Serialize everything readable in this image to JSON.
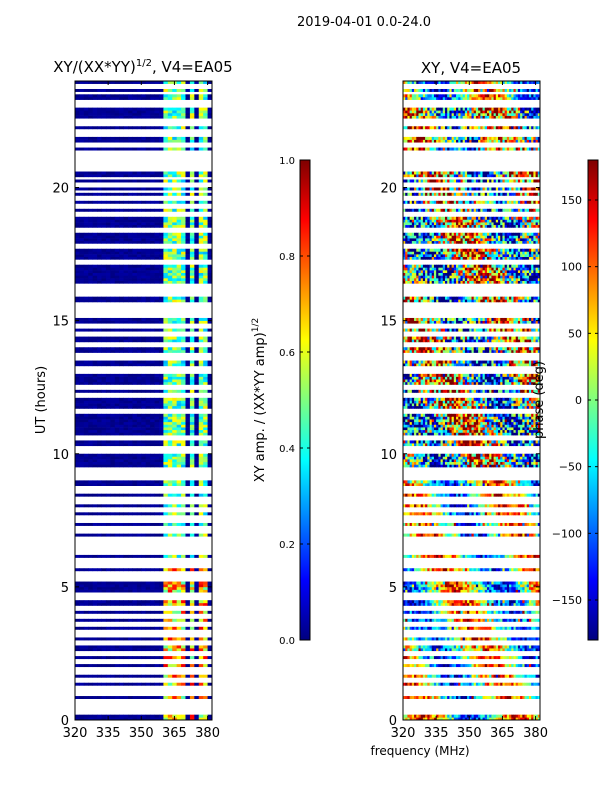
{
  "suptitle": "2019-04-01 0.0-24.0",
  "figure_xlabel": "frequency (MHz)",
  "colors": {
    "jet": [
      "#00007f",
      "#0000ff",
      "#007fff",
      "#00ffff",
      "#7fff7f",
      "#ffff00",
      "#ff7f00",
      "#ff0000",
      "#7f0000"
    ],
    "background": "#ffffff",
    "frame": "#000000"
  },
  "chart_data": [
    {
      "type": "heatmap",
      "title_parts": {
        "main": "XY/(XX*YY)",
        "sup": "1/2",
        "tail": ", V4=EA05"
      },
      "xlabel": "",
      "ylabel": "UT (hours)",
      "xlim": [
        320,
        382
      ],
      "ylim": [
        0,
        24
      ],
      "xticks": [
        320,
        335,
        350,
        365,
        380
      ],
      "xtick_labels": [
        "320",
        "335",
        "350",
        "365",
        "380"
      ],
      "yticks": [
        0,
        5,
        10,
        15,
        20
      ],
      "ytick_labels": [
        "0",
        "5",
        "10",
        "15",
        "20"
      ],
      "gap_bands_hours": [
        [
          0.25,
          0.8
        ],
        [
          0.95,
          1.3
        ],
        [
          1.4,
          1.6
        ],
        [
          1.75,
          2.0
        ],
        [
          2.1,
          2.3
        ],
        [
          2.45,
          2.65
        ],
        [
          2.8,
          3.0
        ],
        [
          3.15,
          3.35
        ],
        [
          3.5,
          3.7
        ],
        [
          3.85,
          4.0
        ],
        [
          4.15,
          4.35
        ],
        [
          4.5,
          4.75
        ],
        [
          5.2,
          5.6
        ],
        [
          5.75,
          6.1
        ],
        [
          6.2,
          6.9
        ],
        [
          7.0,
          7.3
        ],
        [
          7.4,
          7.65
        ],
        [
          7.8,
          8.0
        ],
        [
          8.15,
          8.4
        ],
        [
          8.55,
          8.8
        ],
        [
          9.05,
          9.5
        ],
        [
          10.05,
          10.3
        ],
        [
          10.5,
          10.7
        ],
        [
          11.55,
          11.7
        ],
        [
          12.1,
          12.25
        ],
        [
          12.45,
          12.6
        ],
        [
          13.05,
          13.25
        ],
        [
          13.55,
          13.75
        ],
        [
          14.05,
          14.2
        ],
        [
          14.4,
          14.55
        ],
        [
          14.75,
          14.9
        ],
        [
          15.1,
          15.65
        ],
        [
          15.95,
          16.35
        ],
        [
          17.1,
          17.3
        ],
        [
          17.7,
          17.9
        ],
        [
          18.3,
          18.5
        ],
        [
          18.9,
          19.05
        ],
        [
          19.25,
          19.45
        ],
        [
          19.55,
          19.7
        ],
        [
          19.8,
          19.95
        ],
        [
          20.05,
          20.2
        ],
        [
          20.3,
          20.45
        ],
        [
          20.6,
          20.75
        ],
        [
          20.85,
          21.35
        ],
        [
          21.55,
          21.7
        ],
        [
          21.95,
          22.2
        ],
        [
          22.35,
          22.55
        ],
        [
          23.05,
          23.25
        ],
        [
          23.5,
          23.65
        ],
        [
          23.75,
          23.95
        ]
      ],
      "rfi_channel_bands_mhz": [
        [
          361,
          363
        ],
        [
          364,
          365.5
        ],
        [
          367,
          369
        ],
        [
          372,
          374
        ],
        [
          376,
          378
        ],
        [
          379,
          380.5
        ]
      ],
      "colorbar": {
        "label_main": "XY amp. / (XX*YY amp)",
        "label_sup": "1/2",
        "range": [
          0.0,
          1.0
        ],
        "ticks": [
          0.0,
          0.2,
          0.4,
          0.6,
          0.8,
          1.0
        ],
        "tick_labels": [
          "0.0",
          "0.2",
          "0.4",
          "0.6",
          "0.8",
          "1.0"
        ]
      }
    },
    {
      "type": "heatmap",
      "title": "XY, V4=EA05",
      "xlabel": "frequency (MHz)",
      "ylabel": "",
      "xlim": [
        320,
        382
      ],
      "ylim": [
        0,
        24
      ],
      "xticks": [
        320,
        335,
        350,
        365,
        380
      ],
      "xtick_labels": [
        "320",
        "335",
        "350",
        "365",
        "380"
      ],
      "yticks": [
        0,
        5,
        10,
        15,
        20
      ],
      "ytick_labels": [
        "0",
        "5",
        "10",
        "15",
        "20"
      ],
      "gap_bands_hours": [
        [
          0.25,
          0.8
        ],
        [
          0.95,
          1.3
        ],
        [
          1.4,
          1.6
        ],
        [
          1.75,
          2.0
        ],
        [
          2.1,
          2.3
        ],
        [
          2.45,
          2.65
        ],
        [
          2.8,
          3.0
        ],
        [
          3.15,
          3.35
        ],
        [
          3.5,
          3.7
        ],
        [
          3.85,
          4.0
        ],
        [
          4.15,
          4.35
        ],
        [
          4.5,
          4.75
        ],
        [
          5.2,
          5.6
        ],
        [
          5.75,
          6.1
        ],
        [
          6.2,
          6.9
        ],
        [
          7.0,
          7.3
        ],
        [
          7.4,
          7.65
        ],
        [
          7.8,
          8.0
        ],
        [
          8.15,
          8.4
        ],
        [
          8.55,
          8.8
        ],
        [
          9.05,
          9.5
        ],
        [
          10.05,
          10.3
        ],
        [
          10.5,
          10.7
        ],
        [
          11.55,
          11.7
        ],
        [
          12.1,
          12.25
        ],
        [
          12.45,
          12.6
        ],
        [
          13.05,
          13.25
        ],
        [
          13.55,
          13.75
        ],
        [
          14.05,
          14.2
        ],
        [
          14.4,
          14.55
        ],
        [
          14.75,
          14.9
        ],
        [
          15.1,
          15.65
        ],
        [
          15.95,
          16.35
        ],
        [
          17.1,
          17.3
        ],
        [
          17.7,
          17.9
        ],
        [
          18.3,
          18.5
        ],
        [
          18.9,
          19.05
        ],
        [
          19.25,
          19.45
        ],
        [
          19.55,
          19.7
        ],
        [
          19.8,
          19.95
        ],
        [
          20.05,
          20.2
        ],
        [
          20.3,
          20.45
        ],
        [
          20.6,
          20.75
        ],
        [
          20.85,
          21.35
        ],
        [
          21.55,
          21.7
        ],
        [
          21.95,
          22.2
        ],
        [
          22.35,
          22.55
        ],
        [
          23.05,
          23.25
        ],
        [
          23.5,
          23.65
        ],
        [
          23.75,
          23.95
        ]
      ],
      "colorbar": {
        "label": "phase (deg)",
        "range": [
          -180,
          180
        ],
        "ticks": [
          -150,
          -100,
          -50,
          0,
          50,
          100,
          150
        ],
        "tick_labels": [
          "−150",
          "−100",
          "−50",
          "0",
          "50",
          "100",
          "150"
        ]
      }
    }
  ]
}
